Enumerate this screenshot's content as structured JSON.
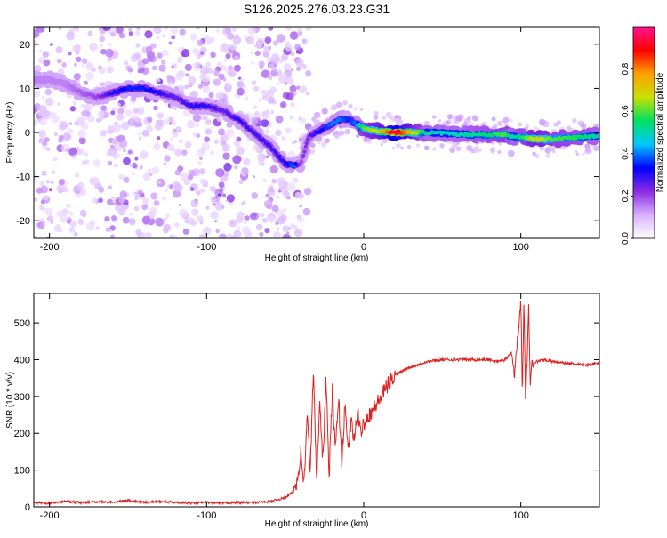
{
  "title": "S126.2025.276.03.23.G31",
  "chart_data": [
    {
      "type": "heatmap",
      "xlabel": "Height of straight line (km)",
      "ylabel": "Frequency (Hz)",
      "xlim": [
        -210,
        150
      ],
      "ylim": [
        -24,
        24
      ],
      "xticks": [
        -200,
        -100,
        0,
        100
      ],
      "yticks": [
        -20,
        -10,
        0,
        10,
        20
      ],
      "colorbar": {
        "label": "Normalized spectral amplitude",
        "range": [
          0,
          1
        ],
        "ticks": [
          "0.0",
          "0.2",
          "0.4",
          "0.6",
          "0.8"
        ],
        "tick_values": [
          0.0,
          0.2,
          0.4,
          0.6,
          0.8
        ],
        "colors": [
          "#ffffff",
          "#d8b0ff",
          "#8a2be2",
          "#0000ff",
          "#00c8ff",
          "#00e060",
          "#c8e000",
          "#ffa000",
          "#ff0000",
          "#ff1493"
        ]
      },
      "ridge_x": [
        -200,
        -190,
        -180,
        -170,
        -160,
        -150,
        -140,
        -130,
        -120,
        -110,
        -100,
        -90,
        -80,
        -70,
        -60,
        -50,
        -45,
        -40,
        -35,
        -30,
        -25,
        -20,
        -15,
        -10,
        -5,
        0,
        5,
        10,
        20,
        40,
        60,
        80,
        90,
        95,
        100,
        110,
        120,
        140,
        150
      ],
      "ridge_freq": [
        12,
        11,
        9,
        8,
        9,
        10,
        10,
        9,
        8,
        6,
        6,
        5,
        3,
        0,
        -3,
        -7,
        -7.5,
        -7,
        -1,
        0,
        1,
        2,
        3,
        3,
        2,
        1,
        0.5,
        0.3,
        0,
        0,
        -0.4,
        -0.5,
        -0.5,
        -1,
        -1,
        -1.5,
        -1.5,
        -1,
        -0.7
      ],
      "ridge_amp": [
        0.15,
        0.15,
        0.18,
        0.2,
        0.3,
        0.35,
        0.35,
        0.3,
        0.25,
        0.3,
        0.3,
        0.25,
        0.3,
        0.28,
        0.28,
        0.3,
        0.4,
        0.2,
        0.25,
        0.3,
        0.35,
        0.4,
        0.4,
        0.35,
        0.4,
        0.6,
        0.65,
        0.7,
        0.95,
        0.5,
        0.5,
        0.55,
        0.6,
        0.5,
        0.55,
        0.7,
        0.6,
        0.55,
        0.5
      ]
    },
    {
      "type": "line",
      "xlabel": "Height of straight line (km)",
      "ylabel": "SNR (10 * v/v)",
      "xlim": [
        -210,
        150
      ],
      "ylim": [
        0,
        580
      ],
      "xticks": [
        -200,
        -100,
        0,
        100
      ],
      "yticks": [
        0,
        100,
        200,
        300,
        400,
        500
      ],
      "color": "#e02020",
      "x": [
        -210,
        -200,
        -190,
        -180,
        -170,
        -160,
        -150,
        -140,
        -130,
        -120,
        -110,
        -100,
        -90,
        -80,
        -70,
        -60,
        -50,
        -45,
        -42,
        -40,
        -38,
        -36,
        -34,
        -32,
        -30,
        -28,
        -26,
        -24,
        -22,
        -20,
        -18,
        -16,
        -14,
        -12,
        -10,
        -8,
        -6,
        -4,
        -2,
        0,
        5,
        10,
        15,
        20,
        30,
        40,
        50,
        60,
        70,
        80,
        85,
        90,
        94,
        96,
        98,
        100,
        101,
        102,
        103,
        104,
        105,
        106,
        107,
        108,
        110,
        115,
        120,
        130,
        140,
        150
      ],
      "y": [
        12,
        10,
        15,
        12,
        14,
        12,
        18,
        12,
        15,
        12,
        10,
        12,
        10,
        12,
        12,
        14,
        25,
        40,
        80,
        150,
        60,
        250,
        100,
        380,
        60,
        300,
        120,
        350,
        80,
        320,
        150,
        300,
        120,
        270,
        160,
        230,
        180,
        260,
        200,
        230,
        260,
        290,
        330,
        360,
        380,
        395,
        400,
        400,
        400,
        400,
        395,
        400,
        420,
        360,
        460,
        570,
        300,
        560,
        290,
        400,
        540,
        330,
        400,
        390,
        395,
        400,
        395,
        390,
        385,
        390
      ]
    }
  ]
}
